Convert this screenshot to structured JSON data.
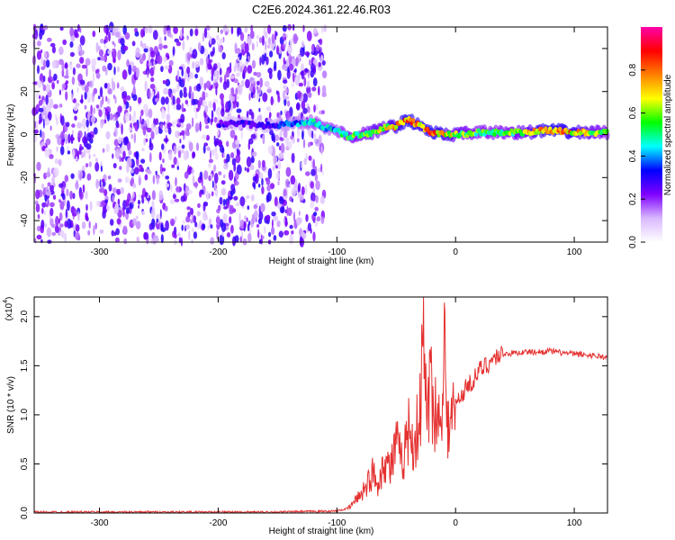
{
  "title": "C2E6.2024.361.22.46.R03",
  "chart_data": [
    {
      "type": "heatmap",
      "xlabel": "Height of straight line (km)",
      "ylabel": "Frequency (Hz)",
      "xlim": [
        -355,
        128
      ],
      "ylim": [
        -50,
        50
      ],
      "xticks": [
        -300,
        -200,
        -100,
        0,
        100
      ],
      "yticks": [
        -40,
        -20,
        0,
        20,
        40
      ],
      "grid": false,
      "colorbar": {
        "label": "Normalized spectral amplitude",
        "range": [
          0,
          1
        ],
        "ticks": [
          "0.0",
          "0.2",
          "0.4",
          "0.6",
          "0.8"
        ],
        "colormap": [
          "#ffffff",
          "#d9b8ff",
          "#7f00ff",
          "#0000ff",
          "#00ffff",
          "#00ff00",
          "#ffff00",
          "#ff8000",
          "#ff0000",
          "#ff00aa"
        ]
      },
      "noise_region": {
        "x": [
          -355,
          -110
        ],
        "frequency": [
          -50,
          50
        ],
        "amplitude": "0.05 - 0.3"
      },
      "signal_trace": {
        "x": [
          -200,
          -180,
          -160,
          -140,
          -120,
          -110,
          -100,
          -90,
          -80,
          -70,
          -60,
          -50,
          -40,
          -30,
          -20,
          -10,
          0,
          20,
          40,
          60,
          80,
          100,
          128
        ],
        "frequency": [
          5,
          5,
          4,
          5,
          6,
          3,
          2,
          -1,
          0,
          1,
          3,
          4,
          7,
          4,
          1,
          0,
          0,
          1,
          1,
          1,
          2,
          1,
          1
        ],
        "amplitude": [
          0.3,
          0.3,
          0.3,
          0.4,
          0.5,
          0.5,
          0.5,
          0.6,
          0.6,
          0.7,
          0.7,
          0.8,
          0.9,
          0.8,
          0.9,
          0.8,
          0.7,
          0.6,
          0.6,
          0.7,
          0.9,
          0.8,
          0.6
        ]
      }
    },
    {
      "type": "line",
      "xlabel": "Height of straight line (km)",
      "ylabel": "SNR (10 * v/v)",
      "y_multiplier": "(x10",
      "y_multiplier_exp": "4",
      "y_multiplier_close": ")",
      "xlim": [
        -355,
        128
      ],
      "ylim": [
        0,
        2.2
      ],
      "xticks": [
        -300,
        -200,
        -100,
        0,
        100
      ],
      "yticks": [
        "0.0",
        "0.5",
        "1.0",
        "1.5",
        "2.0"
      ],
      "grid": false,
      "color": "#e53030",
      "series": [
        {
          "x": [
            -355,
            -150,
            -100,
            -90,
            -85,
            -80,
            -75,
            -70,
            -65,
            -60,
            -55,
            -50,
            -45,
            -40,
            -35,
            -30,
            -27,
            -25,
            -20,
            -15,
            -12,
            -10,
            -8,
            -5,
            0,
            5,
            10,
            15,
            20,
            25,
            30,
            35,
            40,
            50,
            60,
            70,
            80,
            90,
            100,
            110,
            120,
            128
          ],
          "y": [
            0.01,
            0.01,
            0.02,
            0.05,
            0.12,
            0.2,
            0.28,
            0.4,
            0.3,
            0.55,
            0.45,
            0.7,
            0.5,
            0.85,
            0.7,
            1.0,
            1.8,
            1.1,
            1.3,
            0.9,
            1.0,
            2.2,
            1.0,
            0.85,
            1.1,
            1.2,
            1.3,
            1.35,
            1.45,
            1.5,
            1.55,
            1.6,
            1.62,
            1.63,
            1.64,
            1.64,
            1.65,
            1.63,
            1.62,
            1.61,
            1.6,
            1.58
          ]
        }
      ]
    }
  ]
}
